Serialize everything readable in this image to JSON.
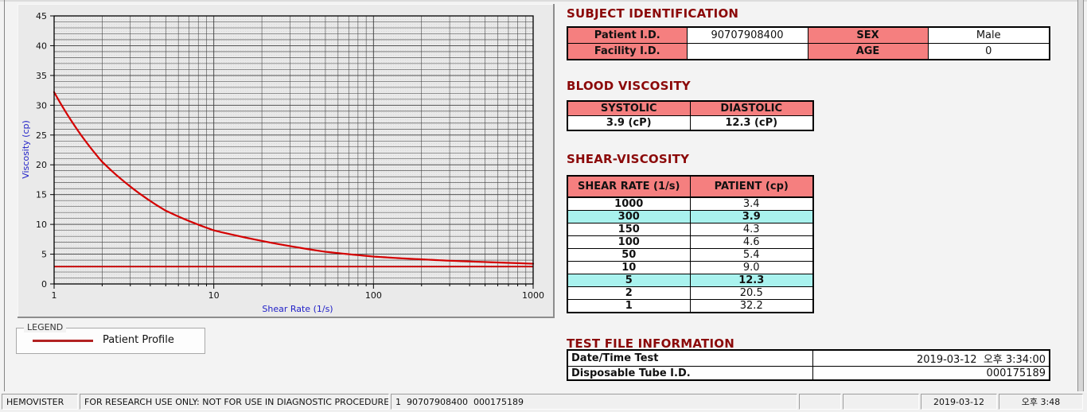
{
  "colors": {
    "section_title": "#8b0909",
    "table_header_bg": "#f57f7f",
    "row_highlight_bg": "#a9f2ee",
    "curve": "#d40000",
    "legend_swatch": "#b22222",
    "axis_label": "#2121c8"
  },
  "chart_data": {
    "type": "line",
    "title": "",
    "xlabel": "Shear Rate (1/s)",
    "ylabel": "Viscosity (cp)",
    "x_scale": "log",
    "xlim": [
      1,
      1000
    ],
    "ylim": [
      0,
      45
    ],
    "x_major_ticks": [
      1,
      10,
      100,
      1000
    ],
    "y_major_ticks": [
      0,
      5,
      10,
      15,
      20,
      25,
      30,
      35,
      40,
      45
    ],
    "grid": "dense: 1-unit horizontal minors, full log-decade vertical minors",
    "legend_position": "separate LEGEND group box below chart",
    "series": [
      {
        "name": "Patient Profile",
        "color": "#d40000",
        "x": [
          1,
          2,
          5,
          10,
          50,
          100,
          150,
          300,
          1000
        ],
        "y": [
          32.2,
          20.5,
          12.3,
          9.0,
          5.4,
          4.6,
          4.3,
          3.9,
          3.4
        ]
      }
    ],
    "baseline": {
      "value": 2.9,
      "color": "#d40000"
    }
  },
  "legend": {
    "box_label": "LEGEND",
    "entries": [
      {
        "label": "Patient Profile",
        "color": "#b22222"
      }
    ]
  },
  "subject_identification": {
    "title": "SUBJECT IDENTIFICATION",
    "rows": [
      [
        "Patient I.D.",
        "90707908400",
        "SEX",
        "Male"
      ],
      [
        "Facility I.D.",
        "",
        "AGE",
        "0"
      ]
    ]
  },
  "blood_viscosity": {
    "title": "BLOOD VISCOSITY",
    "headers": [
      "SYSTOLIC",
      "DIASTOLIC"
    ],
    "values": [
      "3.9 (cP)",
      "12.3 (cP)"
    ]
  },
  "shear_viscosity": {
    "title": "SHEAR-VISCOSITY",
    "headers": [
      "SHEAR RATE (1/s)",
      "PATIENT (cp)"
    ],
    "rows": [
      {
        "rate": "1000",
        "patient": "3.4",
        "highlight": false
      },
      {
        "rate": "300",
        "patient": "3.9",
        "highlight": true
      },
      {
        "rate": "150",
        "patient": "4.3",
        "highlight": false
      },
      {
        "rate": "100",
        "patient": "4.6",
        "highlight": false
      },
      {
        "rate": "50",
        "patient": "5.4",
        "highlight": false
      },
      {
        "rate": "10",
        "patient": "9.0",
        "highlight": false
      },
      {
        "rate": "5",
        "patient": "12.3",
        "highlight": true
      },
      {
        "rate": "2",
        "patient": "20.5",
        "highlight": false
      },
      {
        "rate": "1",
        "patient": "32.2",
        "highlight": false
      }
    ]
  },
  "test_file_information": {
    "title": "TEST FILE INFORMATION",
    "rows": [
      {
        "label": "Date/Time Test",
        "value": "2019-03-12  오후 3:34:00"
      },
      {
        "label": "Disposable Tube I.D.",
        "value": "000175189"
      }
    ]
  },
  "status_bar": {
    "panels": [
      "HEMOVISTER",
      "FOR RESEARCH USE ONLY: NOT FOR USE IN DIAGNOSTIC PROCEDURES",
      "1  90707908400  000175189",
      "",
      "",
      "2019-03-12",
      "오후 3:48"
    ]
  }
}
